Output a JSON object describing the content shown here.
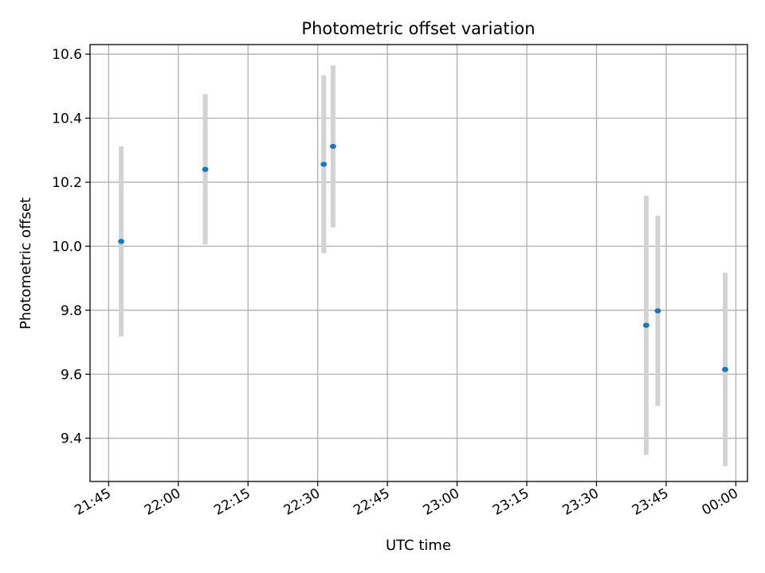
{
  "chart_data": {
    "type": "scatter",
    "title": "Photometric offset variation",
    "xlabel": "UTC time",
    "ylabel": "Photometric offset",
    "x_ticks": [
      "21:45",
      "22:00",
      "22:15",
      "22:30",
      "22:45",
      "23:00",
      "23:15",
      "23:30",
      "23:45",
      "00:00"
    ],
    "y_ticks": [
      "9.4",
      "9.6",
      "9.8",
      "10.0",
      "10.2",
      "10.4",
      "10.6"
    ],
    "x_tick_minutes": [
      1305,
      1320,
      1335,
      1350,
      1365,
      1380,
      1395,
      1410,
      1425,
      1440
    ],
    "y_tick_values": [
      9.4,
      9.6,
      9.8,
      10.0,
      10.2,
      10.4,
      10.6
    ],
    "xlim_minutes": [
      1301,
      1442.5
    ],
    "ylim": [
      9.265,
      10.63
    ],
    "grid": true,
    "points": [
      {
        "time": "21:47:40",
        "minute": 1307.7,
        "y": 10.015,
        "err": 0.297
      },
      {
        "time": "22:05:50",
        "minute": 1325.8,
        "y": 10.24,
        "err": 0.235
      },
      {
        "time": "22:31:20",
        "minute": 1351.3,
        "y": 10.256,
        "err": 0.278
      },
      {
        "time": "22:33:20",
        "minute": 1353.3,
        "y": 10.312,
        "err": 0.253
      },
      {
        "time": "23:40:40",
        "minute": 1420.7,
        "y": 9.753,
        "err": 0.405
      },
      {
        "time": "23:43:10",
        "minute": 1423.2,
        "y": 9.798,
        "err": 0.297
      },
      {
        "time": "23:57:40",
        "minute": 1437.7,
        "y": 9.615,
        "err": 0.302
      }
    ],
    "colors": {
      "point": "#1f77b4",
      "errorbar": "#d3d3d3",
      "grid": "#b0b0b0",
      "axes": "#000000"
    }
  }
}
